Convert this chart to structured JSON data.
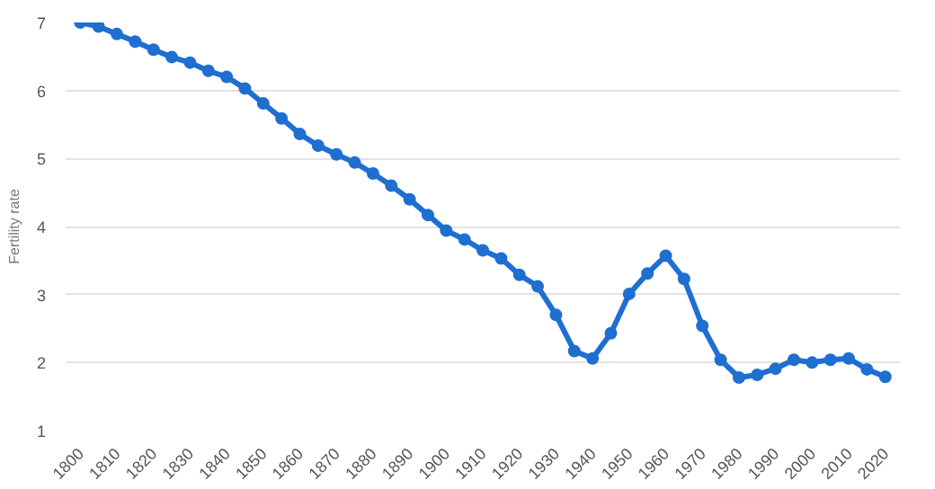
{
  "chart_data": {
    "type": "line",
    "ylabel": "Fertility rate",
    "x": [
      1800,
      1805,
      1810,
      1815,
      1820,
      1825,
      1830,
      1835,
      1840,
      1845,
      1850,
      1855,
      1860,
      1865,
      1870,
      1875,
      1880,
      1885,
      1890,
      1895,
      1900,
      1905,
      1910,
      1915,
      1920,
      1925,
      1930,
      1935,
      1940,
      1945,
      1950,
      1955,
      1960,
      1965,
      1970,
      1975,
      1980,
      1985,
      1990,
      1995,
      2000,
      2005,
      2010,
      2015,
      2020
    ],
    "series": [
      {
        "color": "#1f6fd1",
        "values": [
          7.0,
          6.94,
          6.83,
          6.72,
          6.6,
          6.49,
          6.41,
          6.29,
          6.2,
          6.03,
          5.81,
          5.59,
          5.36,
          5.19,
          5.06,
          4.94,
          4.78,
          4.6,
          4.4,
          4.17,
          3.94,
          3.81,
          3.65,
          3.53,
          3.29,
          3.12,
          2.7,
          2.17,
          2.06,
          2.43,
          3.01,
          3.31,
          3.57,
          3.23,
          2.54,
          2.04,
          1.78,
          1.82,
          1.91,
          2.04,
          2.0,
          2.04,
          2.06,
          1.9,
          1.79
        ]
      }
    ],
    "xlim": [
      1796,
      2024
    ],
    "xticks": [
      1800,
      1810,
      1820,
      1830,
      1840,
      1850,
      1860,
      1870,
      1880,
      1890,
      1900,
      1910,
      1920,
      1930,
      1940,
      1950,
      1960,
      1970,
      1980,
      1990,
      2000,
      2010,
      2020
    ],
    "ylim": [
      1,
      7
    ],
    "yticks": [
      1,
      2,
      3,
      4,
      5,
      6,
      7
    ],
    "grid": "y",
    "marker": "circle",
    "line_style": "solid"
  }
}
